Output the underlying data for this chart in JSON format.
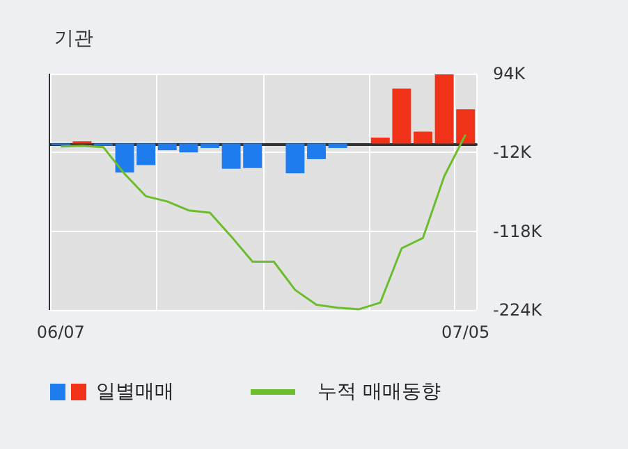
{
  "chart_data": {
    "type": "bar",
    "title": "기관",
    "categories": [
      "06/07",
      null,
      null,
      null,
      null,
      null,
      null,
      null,
      null,
      null,
      null,
      null,
      null,
      null,
      null,
      null,
      null,
      null,
      null,
      "07/05"
    ],
    "series": [
      {
        "name": "일별매매",
        "colors": [
          "#1e7cef",
          "#f03219",
          "#1e7cef",
          "#1e7cef",
          "#1e7cef",
          "#1e7cef",
          "#1e7cef",
          "#1e7cef",
          "#1e7cef",
          "#1e7cef",
          "#1e7cef",
          "#1e7cef",
          "#1e7cef",
          "#1e7cef",
          "#1e7cef",
          "#f03219",
          "#f03219",
          "#f03219",
          "#f03219",
          "#f03219"
        ],
        "values": [
          -2000,
          3000,
          -3000,
          -39000,
          -29000,
          -9000,
          -12000,
          -6000,
          -34000,
          -33000,
          null,
          -40000,
          -21000,
          -6000,
          null,
          8000,
          74000,
          16000,
          93000,
          46000
        ]
      },
      {
        "name": "누적 매매동향",
        "type": "line",
        "color": "#6cbd2b",
        "values": [
          -4000,
          -3000,
          -5000,
          -41000,
          -71000,
          -78000,
          -90000,
          -93000,
          -125000,
          -159000,
          -159000,
          -197000,
          -217000,
          -221000,
          -223000,
          -214000,
          -141000,
          -127000,
          -44000,
          12000
        ]
      }
    ],
    "ylim": [
      -224000,
      94000
    ],
    "yticks": [
      {
        "value": -224000,
        "label": "-224K"
      },
      {
        "value": -118000,
        "label": "-118K"
      },
      {
        "value": -12000,
        "label": "-12K"
      },
      {
        "value": 94000,
        "label": "94K"
      }
    ],
    "grid": true,
    "legend": "bottom",
    "marker": "none"
  }
}
